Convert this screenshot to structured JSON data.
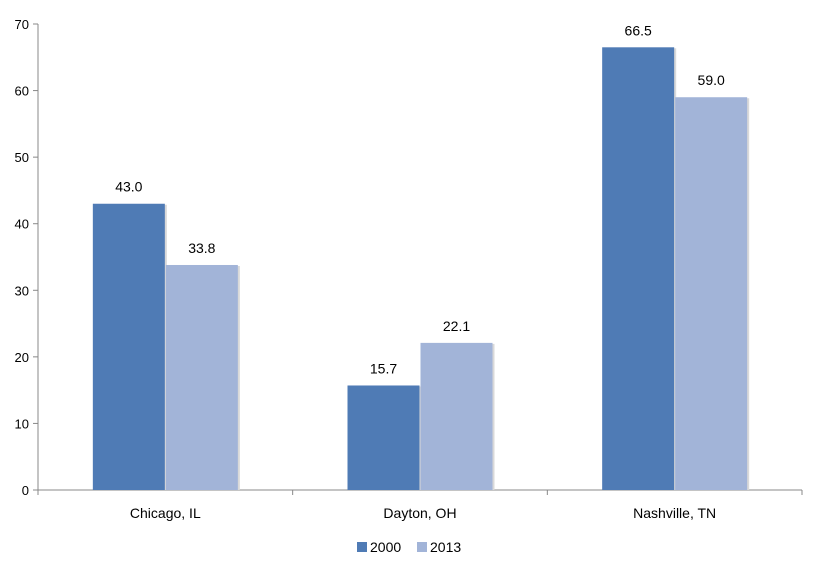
{
  "chart_data": {
    "type": "bar",
    "categories": [
      "Chicago, IL",
      "Dayton, OH",
      "Nashville, TN"
    ],
    "series": [
      {
        "name": "2000",
        "values": [
          43.0,
          15.7,
          66.5
        ],
        "color": "#4F7BB5"
      },
      {
        "name": "2013",
        "values": [
          33.8,
          22.1,
          59.0
        ],
        "color": "#A2B4D8"
      }
    ],
    "data_labels": [
      [
        "43.0",
        "15.7",
        "66.5"
      ],
      [
        "33.8",
        "22.1",
        "59.0"
      ]
    ],
    "ylim": [
      0,
      70
    ],
    "y_ticks": [
      "0",
      "10",
      "20",
      "30",
      "40",
      "50",
      "60",
      "70"
    ],
    "grid": false,
    "legend": "bottom-center",
    "title": "",
    "xlabel": "",
    "ylabel": ""
  }
}
